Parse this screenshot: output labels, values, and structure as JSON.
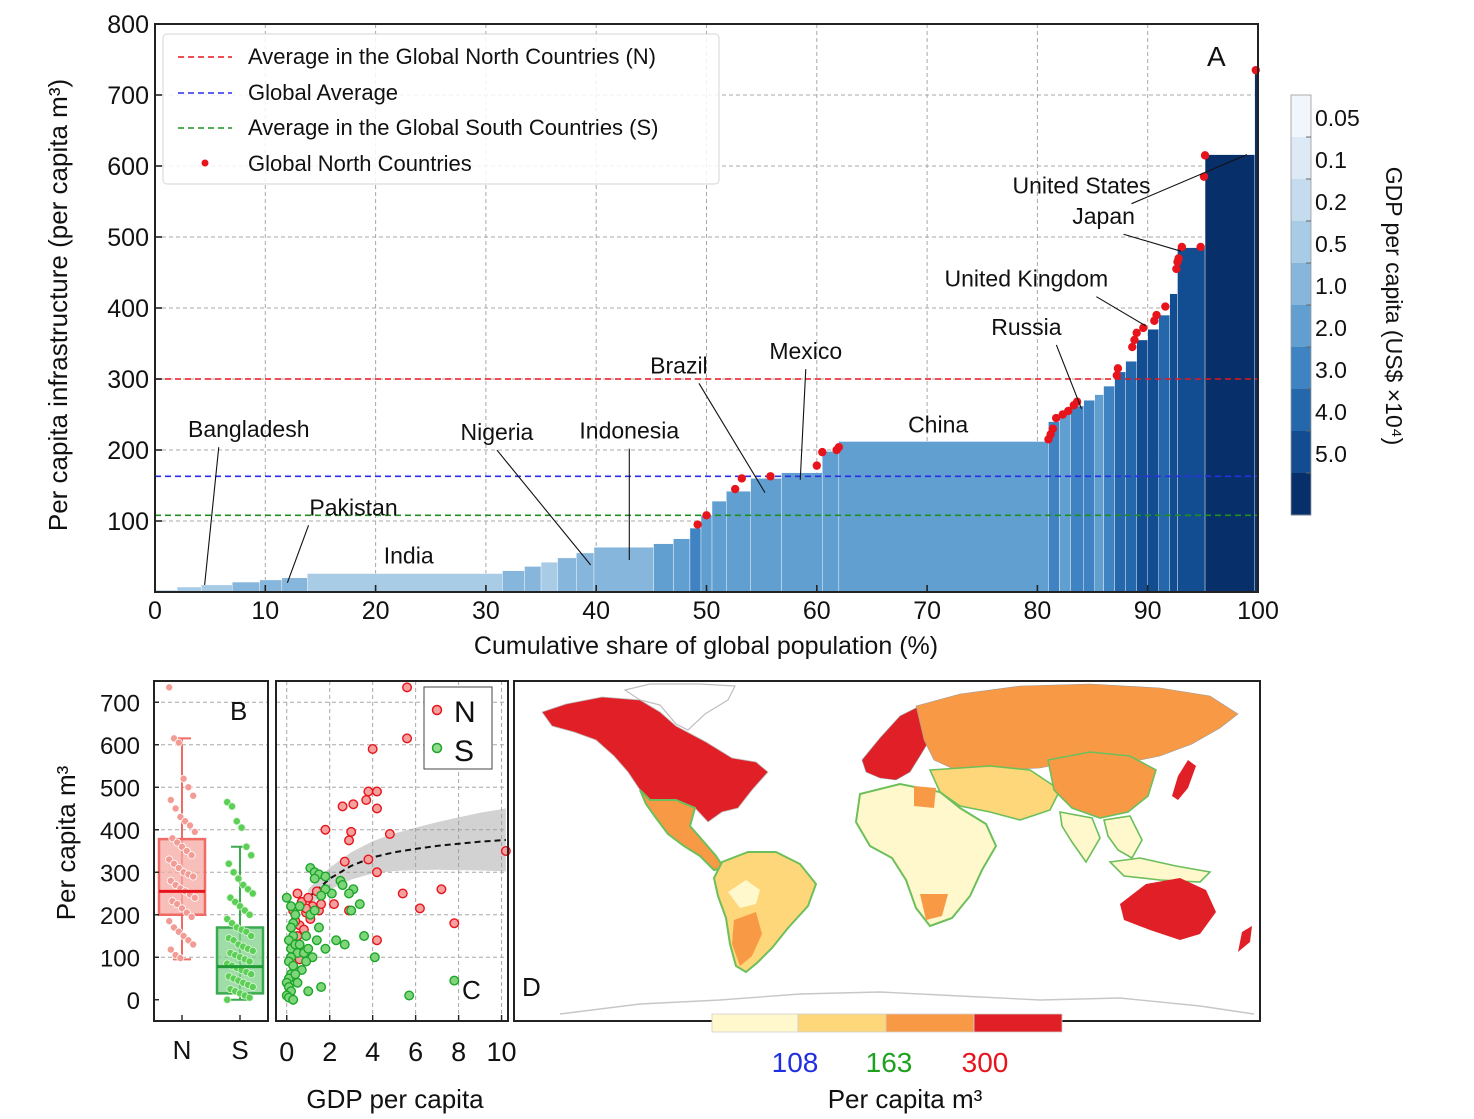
{
  "panelA": {
    "panel_label": "A",
    "xlabel": "Cumulative share of global population (%)",
    "ylabel": "Per capita infrastructure (per capita m³)",
    "xticks": [
      "0",
      "10",
      "20",
      "30",
      "40",
      "50",
      "60",
      "70",
      "80",
      "90",
      "100"
    ],
    "yticks": [
      "100",
      "200",
      "300",
      "400",
      "500",
      "600",
      "700",
      "800"
    ],
    "legend": [
      {
        "label": "Average in the Global North Countries (N)",
        "color": "#e8141b",
        "style": "dash"
      },
      {
        "label": "Global Average",
        "color": "#2a2ee8",
        "style": "dash"
      },
      {
        "label": "Average in the Global South Countries (S)",
        "color": "#1f8f1f",
        "style": "dash"
      },
      {
        "label": "Global North Countries",
        "color": "#e8141b",
        "style": "dot"
      }
    ],
    "colorbar": {
      "label": "GDP per capita (US$ ×10⁴)",
      "ticks": [
        "0.05",
        "0.1",
        "0.2",
        "0.5",
        "1.0",
        "2.0",
        "3.0",
        "4.0",
        "5.0"
      ],
      "colors": [
        "#f1f6fc",
        "#dde9f5",
        "#c5dbee",
        "#a8cbe6",
        "#86b6dc",
        "#629fd1",
        "#3f83c2",
        "#2467ab",
        "#124d92",
        "#07306b"
      ]
    },
    "annotations": [
      {
        "text": "Bangladesh",
        "x": 4,
        "y": 12
      },
      {
        "text": "Pakistan",
        "x": 12,
        "y": 15
      },
      {
        "text": "India",
        "x": 23,
        "y": 30
      },
      {
        "text": "Nigeria",
        "x": 39,
        "y": 40
      },
      {
        "text": "Indonesia",
        "x": 43,
        "y": 50
      },
      {
        "text": "Brazil",
        "x": 55.5,
        "y": 145
      },
      {
        "text": "Mexico",
        "x": 59,
        "y": 155
      },
      {
        "text": "China",
        "x": 71,
        "y": 213
      },
      {
        "text": "Russia",
        "x": 84,
        "y": 255
      },
      {
        "text": "United Kingdom",
        "x": 90,
        "y": 375
      },
      {
        "text": "Japan",
        "x": 93,
        "y": 480
      },
      {
        "text": "United States",
        "x": 99,
        "y": 616
      }
    ]
  },
  "chart_data": [
    {
      "type": "area",
      "title": "",
      "xlabel": "Cumulative share of global population (%)",
      "ylabel": "Per capita infrastructure (per capita m³)",
      "xlim": [
        0,
        100
      ],
      "ylim": [
        0,
        800
      ],
      "grid": true,
      "legend_position": "top-left",
      "reference_lines": [
        {
          "name": "Average in the Global North Countries (N)",
          "y": 300
        },
        {
          "name": "Global Average",
          "y": 163
        },
        {
          "name": "Average in the Global South Countries (S)",
          "y": 108
        }
      ],
      "steps": [
        {
          "x0": 0,
          "x1": 2,
          "y": 3,
          "gdp": 0.1
        },
        {
          "x0": 2,
          "x1": 4.2,
          "y": 7,
          "gdp": 0.2
        },
        {
          "x0": 4.2,
          "x1": 7,
          "y": 10,
          "gdp": 0.2
        },
        {
          "x0": 7,
          "x1": 9.5,
          "y": 14,
          "gdp": 0.5
        },
        {
          "x0": 9.5,
          "x1": 11.5,
          "y": 17,
          "gdp": 0.5
        },
        {
          "x0": 11.5,
          "x1": 13.8,
          "y": 20,
          "gdp": 0.5
        },
        {
          "x0": 13.8,
          "x1": 31.5,
          "y": 26,
          "gdp": 0.2
        },
        {
          "x0": 31.5,
          "x1": 33.5,
          "y": 30,
          "gdp": 0.5
        },
        {
          "x0": 33.5,
          "x1": 35,
          "y": 36,
          "gdp": 0.5
        },
        {
          "x0": 35,
          "x1": 36.5,
          "y": 42,
          "gdp": 0.2
        },
        {
          "x0": 36.5,
          "x1": 38.2,
          "y": 48,
          "gdp": 0.5
        },
        {
          "x0": 38.2,
          "x1": 39.8,
          "y": 55,
          "gdp": 0.5
        },
        {
          "x0": 39.8,
          "x1": 45.2,
          "y": 63,
          "gdp": 0.5
        },
        {
          "x0": 45.2,
          "x1": 47,
          "y": 68,
          "gdp": 1.0
        },
        {
          "x0": 47,
          "x1": 48.5,
          "y": 75,
          "gdp": 1.0
        },
        {
          "x0": 48.5,
          "x1": 49.5,
          "y": 90,
          "gdp": 2.0
        },
        {
          "x0": 49.5,
          "x1": 50.5,
          "y": 108,
          "gdp": 1.0
        },
        {
          "x0": 50.5,
          "x1": 51.8,
          "y": 128,
          "gdp": 1.0
        },
        {
          "x0": 51.8,
          "x1": 54,
          "y": 142,
          "gdp": 1.0
        },
        {
          "x0": 54,
          "x1": 56.8,
          "y": 160,
          "gdp": 1.0
        },
        {
          "x0": 56.8,
          "x1": 60.5,
          "y": 168,
          "gdp": 1.0
        },
        {
          "x0": 60.5,
          "x1": 62,
          "y": 198,
          "gdp": 1.0
        },
        {
          "x0": 62,
          "x1": 81,
          "y": 212,
          "gdp": 1.0
        },
        {
          "x0": 81,
          "x1": 82,
          "y": 240,
          "gdp": 2.0
        },
        {
          "x0": 82,
          "x1": 83,
          "y": 255,
          "gdp": 1.0
        },
        {
          "x0": 83,
          "x1": 84.2,
          "y": 262,
          "gdp": 2.0
        },
        {
          "x0": 84.2,
          "x1": 85.2,
          "y": 270,
          "gdp": 2.0
        },
        {
          "x0": 85.2,
          "x1": 86,
          "y": 278,
          "gdp": 1.0
        },
        {
          "x0": 86,
          "x1": 87,
          "y": 290,
          "gdp": 2.0
        },
        {
          "x0": 87,
          "x1": 88,
          "y": 310,
          "gdp": 3.0
        },
        {
          "x0": 88,
          "x1": 89,
          "y": 325,
          "gdp": 3.0
        },
        {
          "x0": 89,
          "x1": 90,
          "y": 355,
          "gdp": 4.0
        },
        {
          "x0": 90,
          "x1": 91,
          "y": 370,
          "gdp": 4.0
        },
        {
          "x0": 91,
          "x1": 92,
          "y": 390,
          "gdp": 3.0
        },
        {
          "x0": 92,
          "x1": 92.7,
          "y": 420,
          "gdp": 4.0
        },
        {
          "x0": 92.7,
          "x1": 95.2,
          "y": 485,
          "gdp": 4.0
        },
        {
          "x0": 95.2,
          "x1": 99.7,
          "y": 616,
          "gdp": 5.0
        },
        {
          "x0": 99.7,
          "x1": 100,
          "y": 735,
          "gdp": 5.0
        }
      ],
      "north_points": [
        {
          "x": 49.2,
          "y": 95
        },
        {
          "x": 50,
          "y": 108
        },
        {
          "x": 52.6,
          "y": 145
        },
        {
          "x": 53.2,
          "y": 160
        },
        {
          "x": 55.8,
          "y": 163
        },
        {
          "x": 60,
          "y": 178
        },
        {
          "x": 60.5,
          "y": 197
        },
        {
          "x": 61.8,
          "y": 200
        },
        {
          "x": 62,
          "y": 204
        },
        {
          "x": 81,
          "y": 215
        },
        {
          "x": 81.2,
          "y": 222
        },
        {
          "x": 81.4,
          "y": 230
        },
        {
          "x": 81.7,
          "y": 245
        },
        {
          "x": 82.3,
          "y": 250
        },
        {
          "x": 82.8,
          "y": 255
        },
        {
          "x": 83.3,
          "y": 263
        },
        {
          "x": 83.6,
          "y": 268
        },
        {
          "x": 87.2,
          "y": 305
        },
        {
          "x": 87.3,
          "y": 315
        },
        {
          "x": 88.6,
          "y": 345
        },
        {
          "x": 88.8,
          "y": 355
        },
        {
          "x": 89,
          "y": 365
        },
        {
          "x": 89.6,
          "y": 372
        },
        {
          "x": 90.6,
          "y": 382
        },
        {
          "x": 90.8,
          "y": 390
        },
        {
          "x": 91.6,
          "y": 402
        },
        {
          "x": 92.6,
          "y": 455
        },
        {
          "x": 92.7,
          "y": 465
        },
        {
          "x": 92.8,
          "y": 470
        },
        {
          "x": 93.1,
          "y": 486
        },
        {
          "x": 94.8,
          "y": 486
        },
        {
          "x": 95.1,
          "y": 585
        },
        {
          "x": 95.2,
          "y": 615
        },
        {
          "x": 99.8,
          "y": 735
        }
      ]
    },
    {
      "type": "box",
      "title": "",
      "ylabel": "Per capita m³",
      "categories": [
        "N",
        "S"
      ],
      "ylim": [
        -50,
        750
      ],
      "series": [
        {
          "name": "N",
          "q1": 200,
          "median": 255,
          "q3": 378,
          "whisker_low": 95,
          "whisker_high": 615,
          "points": [
            735,
            615,
            605,
            520,
            500,
            480,
            470,
            450,
            430,
            420,
            410,
            395,
            380,
            370,
            360,
            350,
            340,
            330,
            320,
            310,
            300,
            295,
            290,
            280,
            270,
            262,
            255,
            248,
            240,
            232,
            225,
            215,
            205,
            195,
            185,
            170,
            160,
            150,
            140,
            130,
            118,
            105,
            98
          ]
        },
        {
          "name": "S",
          "q1": 15,
          "median": 78,
          "q3": 170,
          "whisker_low": 0,
          "whisker_high": 360,
          "points": [
            465,
            455,
            420,
            405,
            360,
            340,
            320,
            300,
            285,
            270,
            260,
            250,
            240,
            230,
            220,
            210,
            200,
            190,
            180,
            170,
            165,
            160,
            150,
            145,
            140,
            130,
            125,
            120,
            115,
            110,
            105,
            100,
            95,
            90,
            85,
            80,
            75,
            70,
            65,
            60,
            55,
            50,
            45,
            40,
            35,
            30,
            25,
            20,
            15,
            10,
            5,
            0
          ]
        }
      ]
    },
    {
      "type": "scatter",
      "title": "",
      "xlabel": "GDP per capita",
      "xlim": [
        -0.5,
        10.3
      ],
      "ylim": [
        -50,
        750
      ],
      "grid": true,
      "legend_position": "top-right",
      "series": [
        {
          "name": "N",
          "color": "#e8141b",
          "points": [
            [
              5.6,
              735
            ],
            [
              5.6,
              615
            ],
            [
              4,
              590
            ],
            [
              3.1,
              460
            ],
            [
              2.6,
              455
            ],
            [
              3.7,
              470
            ],
            [
              3.8,
              490
            ],
            [
              4.2,
              450
            ],
            [
              4.2,
              490
            ],
            [
              3,
              395
            ],
            [
              1.8,
              400
            ],
            [
              2.9,
              375
            ],
            [
              4.8,
              390
            ],
            [
              3.8,
              330
            ],
            [
              2.7,
              325
            ],
            [
              4.2,
              300
            ],
            [
              1.4,
              255
            ],
            [
              5.4,
              250
            ],
            [
              7.2,
              260
            ],
            [
              10.2,
              350
            ],
            [
              2.2,
              225
            ],
            [
              2.9,
              210
            ],
            [
              6.2,
              215
            ],
            [
              7.8,
              180
            ],
            [
              0.5,
              250
            ],
            [
              0.7,
              230
            ],
            [
              0.9,
              205
            ],
            [
              1.1,
              190
            ],
            [
              0.6,
              175
            ],
            [
              0.8,
              165
            ],
            [
              0.5,
              150
            ],
            [
              0.5,
              120
            ],
            [
              0.6,
              100
            ],
            [
              0.6,
              95
            ],
            [
              1.2,
              220
            ],
            [
              1.5,
              210
            ],
            [
              0.3,
              210
            ],
            [
              0.4,
              185
            ],
            [
              0.9,
              215
            ],
            [
              0.7,
              230
            ],
            [
              4.2,
              140
            ],
            [
              1,
              240
            ],
            [
              1.6,
              225
            ]
          ]
        },
        {
          "name": "S",
          "color": "#1ca52a",
          "points": [
            [
              7.8,
              45
            ],
            [
              5.7,
              10
            ],
            [
              3.6,
              150
            ],
            [
              4.1,
              100
            ],
            [
              1.1,
              310
            ],
            [
              1.3,
              300
            ],
            [
              1.5,
              295
            ],
            [
              1.8,
              290
            ],
            [
              2.5,
              280
            ],
            [
              3.1,
              260
            ],
            [
              1.3,
              285
            ],
            [
              2.6,
              270
            ],
            [
              2.9,
              250
            ],
            [
              2.1,
              250
            ],
            [
              3.4,
              225
            ],
            [
              1.8,
              260
            ],
            [
              1.6,
              245
            ],
            [
              0.6,
              220
            ],
            [
              0.4,
              200
            ],
            [
              0.3,
              180
            ],
            [
              0.2,
              170
            ],
            [
              0.3,
              150
            ],
            [
              0.1,
              140
            ],
            [
              0.2,
              120
            ],
            [
              0.4,
              130
            ],
            [
              0.5,
              110
            ],
            [
              0.2,
              100
            ],
            [
              0.1,
              90
            ],
            [
              0.3,
              80
            ],
            [
              0.2,
              60
            ],
            [
              0.1,
              50
            ],
            [
              0.0,
              40
            ],
            [
              0.1,
              30
            ],
            [
              0.2,
              20
            ],
            [
              0.0,
              10
            ],
            [
              0.1,
              5
            ],
            [
              0.3,
              0
            ],
            [
              0.5,
              40
            ],
            [
              0.7,
              70
            ],
            [
              0.8,
              110
            ],
            [
              1.0,
              120
            ],
            [
              0.9,
              150
            ],
            [
              1.2,
              100
            ],
            [
              1.4,
              140
            ],
            [
              1.5,
              170
            ],
            [
              1.1,
              200
            ],
            [
              0.9,
              90
            ],
            [
              1.0,
              20
            ],
            [
              2.3,
              140
            ],
            [
              2.7,
              130
            ],
            [
              3.0,
              210
            ],
            [
              1.8,
              120
            ],
            [
              0.6,
              130
            ],
            [
              0.4,
              60
            ],
            [
              0.2,
              220
            ],
            [
              0.0,
              240
            ],
            [
              1.3,
              210
            ],
            [
              1.6,
              30
            ]
          ]
        }
      ],
      "fit_curve": [
        [
          1,
          240
        ],
        [
          2,
          285
        ],
        [
          3,
          315
        ],
        [
          4,
          335
        ],
        [
          5,
          347
        ],
        [
          6,
          355
        ],
        [
          7,
          362
        ],
        [
          8,
          367
        ],
        [
          9,
          372
        ],
        [
          10.2,
          376
        ]
      ]
    }
  ],
  "panelB": {
    "panel_label": "B",
    "ylabel": "Per capita m³",
    "yticks": [
      "0",
      "100",
      "200",
      "300",
      "400",
      "500",
      "600",
      "700"
    ],
    "xticks": [
      "N",
      "S"
    ]
  },
  "panelC": {
    "panel_label": "C",
    "xlabel": "GDP per capita",
    "xticks": [
      "0",
      "2",
      "4",
      "6",
      "8",
      "10"
    ],
    "legend": [
      {
        "label": "N",
        "color": "#e8141b"
      },
      {
        "label": "S",
        "color": "#1ca52a"
      }
    ]
  },
  "panelD": {
    "panel_label": "D",
    "legend_label": "Per capita m³",
    "thresholds": [
      {
        "value": "108",
        "color": "#1f2ee0"
      },
      {
        "value": "163",
        "color": "#1fa11f"
      },
      {
        "value": "300",
        "color": "#e8141b"
      }
    ],
    "bins": [
      "#fff8cc",
      "#fdd77a",
      "#f89a45",
      "#e11f26"
    ]
  }
}
